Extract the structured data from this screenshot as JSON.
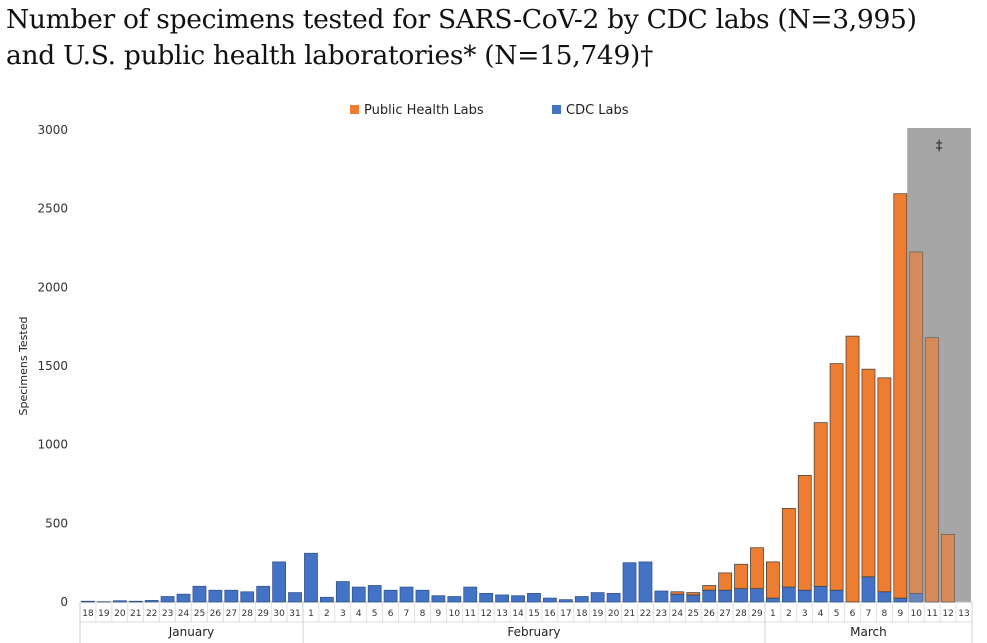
{
  "title": {
    "line1": "Number of specimens tested for SARS-CoV-2 by CDC labs (N=3,995)",
    "line2": "and U.S. public health laboratories* (N=15,749)†"
  },
  "chart_data": {
    "type": "bar",
    "stacked": true,
    "ylabel": "Specimens Tested",
    "ylim": [
      0,
      3000
    ],
    "yticks": [
      0,
      500,
      1000,
      1500,
      2000,
      2500,
      3000
    ],
    "legend_position": "top",
    "shaded_region_label": "‡",
    "shaded_region_categories": [
      "10",
      "11",
      "12",
      "13"
    ],
    "colors": {
      "cdc": "#4472c4",
      "phl": "#ed7d31",
      "shade": "#a6a6a6"
    },
    "categories": [
      "18",
      "19",
      "20",
      "21",
      "22",
      "23",
      "24",
      "25",
      "26",
      "27",
      "28",
      "29",
      "30",
      "31",
      "1",
      "2",
      "3",
      "4",
      "5",
      "6",
      "7",
      "8",
      "9",
      "10",
      "11",
      "12",
      "13",
      "14",
      "15",
      "16",
      "17",
      "18",
      "19",
      "20",
      "21",
      "22",
      "23",
      "24",
      "25",
      "26",
      "27",
      "28",
      "29",
      "1",
      "2",
      "3",
      "4",
      "5",
      "6",
      "7",
      "8",
      "9",
      "10",
      "11",
      "12",
      "13"
    ],
    "month_groups": [
      {
        "label": "January",
        "count": 14
      },
      {
        "label": "February",
        "count": 29
      },
      {
        "label": "March",
        "count": 13
      }
    ],
    "series": [
      {
        "name": "Public Health Labs",
        "values": [
          0,
          0,
          0,
          0,
          0,
          0,
          0,
          0,
          0,
          0,
          0,
          0,
          0,
          0,
          0,
          0,
          0,
          0,
          0,
          0,
          0,
          0,
          0,
          0,
          0,
          0,
          0,
          0,
          0,
          0,
          0,
          0,
          0,
          0,
          0,
          0,
          0,
          15,
          15,
          30,
          110,
          155,
          260,
          230,
          500,
          730,
          1040,
          1440,
          1690,
          1320,
          1360,
          2570,
          2170,
          1680,
          430,
          0
        ]
      },
      {
        "name": "CDC Labs",
        "values": [
          5,
          2,
          8,
          5,
          10,
          35,
          50,
          100,
          75,
          75,
          65,
          100,
          255,
          60,
          310,
          30,
          130,
          95,
          105,
          75,
          95,
          75,
          40,
          35,
          95,
          55,
          45,
          40,
          55,
          25,
          15,
          35,
          60,
          55,
          250,
          255,
          70,
          50,
          45,
          75,
          75,
          85,
          85,
          25,
          95,
          75,
          100,
          75,
          0,
          160,
          65,
          25,
          55,
          0,
          0,
          0
        ]
      }
    ]
  }
}
